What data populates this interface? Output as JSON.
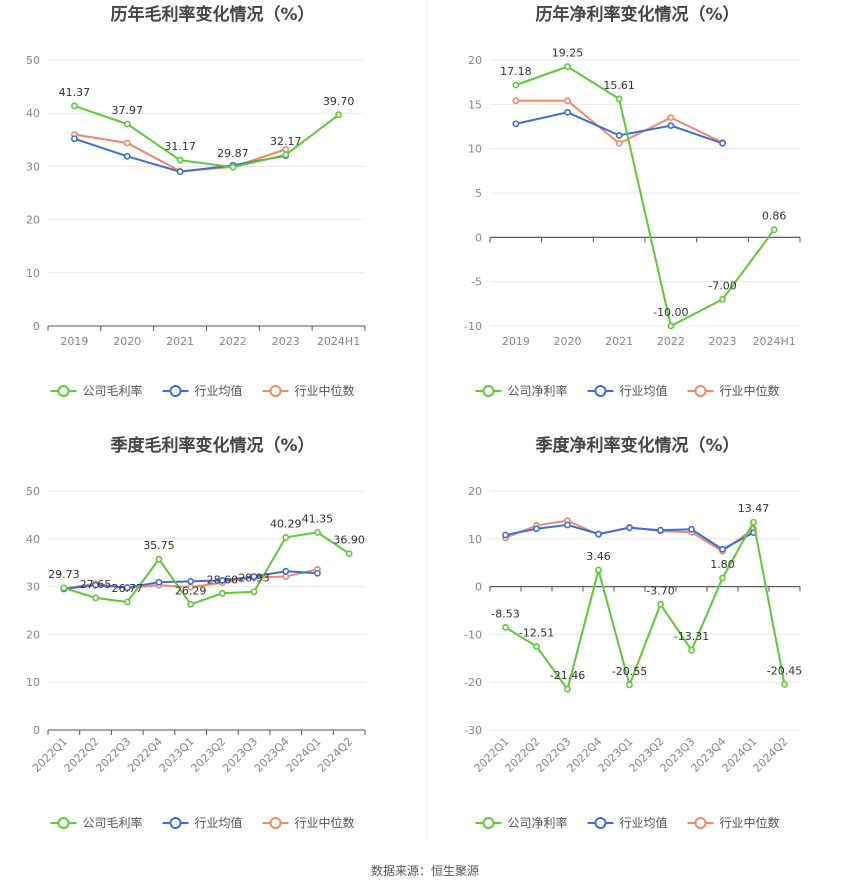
{
  "colors": {
    "company": "#5ec93a",
    "industry_avg": "#3c6fd6",
    "industry_median": "#f4876a"
  },
  "source_text": "数据来源：恒生聚源",
  "chart_data": [
    {
      "type": "line",
      "title": "历年毛利率变化情况（%）",
      "categories": [
        "2019",
        "2020",
        "2021",
        "2022",
        "2023",
        "2024H1"
      ],
      "ylim": [
        0,
        50
      ],
      "yticks": [
        0,
        10,
        20,
        30,
        40,
        50
      ],
      "grid": true,
      "legend_position": "bottom",
      "rotate_x": false,
      "series": [
        {
          "name": "公司毛利率",
          "color": "#5ec93a",
          "values": [
            41.37,
            37.97,
            31.17,
            29.87,
            32.17,
            39.7
          ],
          "labels": [
            "41.37",
            "37.97",
            "31.17",
            "29.87",
            "32.17",
            "39.70"
          ]
        },
        {
          "name": "行业均值",
          "color": "#3c6fd6",
          "values": [
            35.2,
            31.9,
            29.0,
            30.2,
            32.0,
            null
          ]
        },
        {
          "name": "行业中位数",
          "color": "#f4876a",
          "values": [
            36.0,
            34.4,
            29.1,
            29.9,
            33.2,
            null
          ]
        }
      ]
    },
    {
      "type": "line",
      "title": "历年净利率变化情况（%）",
      "categories": [
        "2019",
        "2020",
        "2021",
        "2022",
        "2023",
        "2024H1"
      ],
      "ylim": [
        -10,
        20
      ],
      "yticks": [
        -10,
        -5,
        0,
        5,
        10,
        15,
        20
      ],
      "grid": true,
      "legend_position": "bottom",
      "rotate_x": false,
      "series": [
        {
          "name": "公司净利率",
          "color": "#5ec93a",
          "values": [
            17.18,
            19.25,
            15.61,
            -10.0,
            -7.0,
            0.86
          ],
          "labels": [
            "17.18",
            "19.25",
            "15.61",
            "-10.00",
            "-7.00",
            "0.86"
          ]
        },
        {
          "name": "行业均值",
          "color": "#3c6fd6",
          "values": [
            12.8,
            14.1,
            11.5,
            12.6,
            10.6,
            null
          ]
        },
        {
          "name": "行业中位数",
          "color": "#f4876a",
          "values": [
            15.4,
            15.4,
            10.6,
            13.5,
            10.7,
            null
          ]
        }
      ]
    },
    {
      "type": "line",
      "title": "季度毛利率变化情况（%）",
      "categories": [
        "2022Q1",
        "2022Q2",
        "2022Q3",
        "2022Q4",
        "2023Q1",
        "2023Q2",
        "2023Q3",
        "2023Q4",
        "2024Q1",
        "2024Q2"
      ],
      "ylim": [
        0,
        50
      ],
      "yticks": [
        0,
        10,
        20,
        30,
        40,
        50
      ],
      "grid": true,
      "legend_position": "bottom",
      "rotate_x": true,
      "series": [
        {
          "name": "公司毛利率",
          "color": "#5ec93a",
          "values": [
            29.73,
            27.65,
            26.77,
            35.75,
            26.29,
            28.6,
            28.93,
            40.29,
            41.35,
            36.9
          ],
          "labels": [
            "29.73",
            "27.65",
            "26.77",
            "35.75",
            "26.29",
            "28.60",
            "28.93",
            "40.29",
            "41.35",
            "36.90"
          ]
        },
        {
          "name": "行业均值",
          "color": "#3c6fd6",
          "values": [
            29.5,
            30.3,
            29.8,
            30.9,
            31.1,
            31.3,
            32.1,
            33.2,
            32.8,
            null
          ]
        },
        {
          "name": "行业中位数",
          "color": "#f4876a",
          "values": [
            29.6,
            30.6,
            29.7,
            30.3,
            29.9,
            30.8,
            31.9,
            32.1,
            33.6,
            null
          ]
        }
      ]
    },
    {
      "type": "line",
      "title": "季度净利率变化情况（%）",
      "categories": [
        "2022Q1",
        "2022Q2",
        "2022Q3",
        "2022Q4",
        "2023Q1",
        "2023Q2",
        "2023Q3",
        "2023Q4",
        "2024Q1",
        "2024Q2"
      ],
      "ylim": [
        -30,
        20
      ],
      "yticks": [
        -30,
        -20,
        -10,
        0,
        10,
        20
      ],
      "grid": true,
      "legend_position": "bottom",
      "rotate_x": true,
      "series": [
        {
          "name": "公司净利率",
          "color": "#5ec93a",
          "values": [
            -8.53,
            -12.51,
            -21.46,
            3.46,
            -20.55,
            -3.7,
            -13.31,
            1.8,
            13.47,
            -20.45
          ],
          "labels": [
            "-8.53",
            "-12.51",
            "-21.46",
            "3.46",
            "-20.55",
            "-3.70",
            "-13.31",
            "1.80",
            "13.47",
            "-20.45"
          ]
        },
        {
          "name": "行业均值",
          "color": "#3c6fd6",
          "values": [
            10.8,
            12.1,
            12.9,
            11.0,
            12.3,
            11.8,
            12.0,
            7.8,
            11.3,
            null
          ]
        },
        {
          "name": "行业中位数",
          "color": "#f4876a",
          "values": [
            10.2,
            12.8,
            13.8,
            10.9,
            12.4,
            11.6,
            11.4,
            7.4,
            12.1,
            null
          ]
        }
      ]
    }
  ]
}
